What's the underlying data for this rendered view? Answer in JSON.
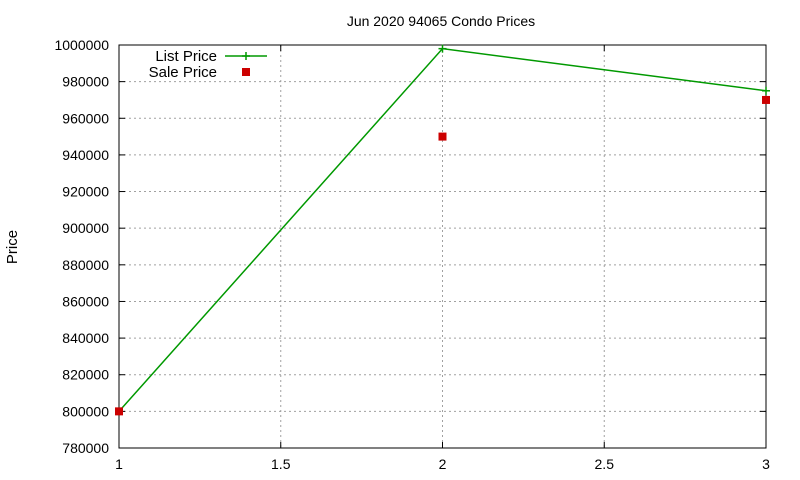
{
  "chart_data": {
    "type": "line",
    "title": "Jun 2020 94065 Condo Prices",
    "xlabel": "",
    "ylabel": "Price",
    "xlim": [
      1,
      3
    ],
    "ylim": [
      780000,
      1000000
    ],
    "x_ticks": [
      1,
      1.5,
      2,
      2.5,
      3
    ],
    "x_tick_labels": [
      "1",
      "1.5",
      "2",
      "2.5",
      "3"
    ],
    "y_ticks": [
      780000,
      800000,
      820000,
      840000,
      860000,
      880000,
      900000,
      920000,
      940000,
      960000,
      980000,
      1000000
    ],
    "y_tick_labels": [
      "780000",
      "800000",
      "820000",
      "840000",
      "860000",
      "880000",
      "900000",
      "920000",
      "940000",
      "960000",
      "980000",
      "1000000"
    ],
    "grid": true,
    "legend_position": "top-left",
    "series": [
      {
        "name": "List Price",
        "style": "line-points",
        "marker": "plus",
        "color": "#009900",
        "x": [
          1,
          2,
          3
        ],
        "y": [
          800000,
          998000,
          975000
        ]
      },
      {
        "name": "Sale Price",
        "style": "points",
        "marker": "square",
        "color": "#cc0000",
        "x": [
          1,
          2,
          3
        ],
        "y": [
          800000,
          950000,
          970000
        ]
      }
    ]
  }
}
